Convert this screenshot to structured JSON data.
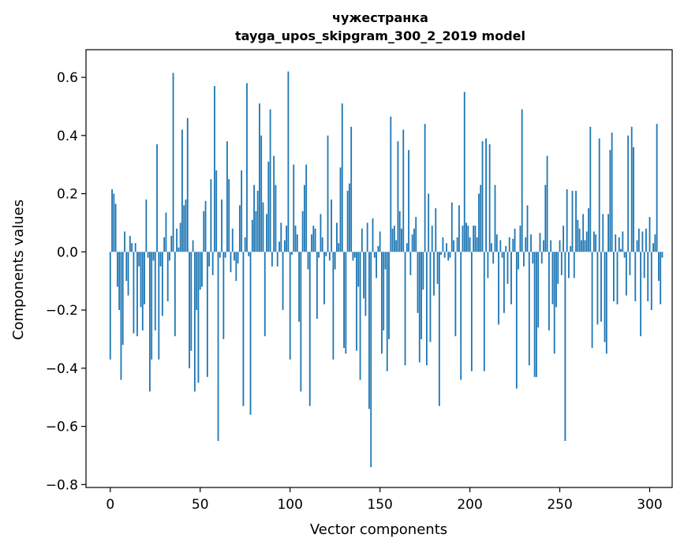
{
  "chart_data": {
    "type": "bar",
    "title": "чужестранка",
    "subtitle": "tayga_upos_skipgram_300_2_2019 model",
    "xlabel": "Vector components",
    "ylabel": "Components values",
    "xlim": [
      -13.5,
      312.5
    ],
    "ylim": [
      -0.81,
      0.695
    ],
    "xticks": [
      0,
      50,
      100,
      150,
      200,
      250,
      300
    ],
    "yticks": [
      -0.8,
      -0.6,
      -0.4,
      -0.2,
      0.0,
      0.2,
      0.4,
      0.6
    ],
    "ytick_labels": [
      "−0.8",
      "−0.6",
      "−0.4",
      "−0.2",
      "0.0",
      "0.2",
      "0.4",
      "0.6"
    ],
    "bar_color": "#1f77b4",
    "values": [
      -0.37,
      0.215,
      0.2,
      0.165,
      -0.12,
      -0.2,
      -0.44,
      -0.32,
      0.07,
      -0.1,
      -0.15,
      0.055,
      0.03,
      -0.28,
      0.03,
      -0.29,
      -0.05,
      -0.19,
      -0.27,
      -0.18,
      0.18,
      -0.02,
      -0.48,
      -0.37,
      -0.03,
      -0.27,
      0.37,
      -0.37,
      -0.05,
      -0.22,
      0.05,
      0.135,
      -0.17,
      -0.03,
      0.055,
      0.615,
      -0.29,
      0.08,
      0.015,
      0.1,
      0.42,
      0.16,
      0.18,
      0.46,
      -0.4,
      -0.34,
      0.04,
      -0.48,
      -0.2,
      -0.45,
      -0.13,
      -0.12,
      0.14,
      0.175,
      -0.43,
      -0.05,
      0.25,
      -0.08,
      0.57,
      0.28,
      -0.65,
      -0.02,
      0.18,
      -0.3,
      -0.02,
      0.38,
      0.25,
      -0.07,
      0.08,
      -0.03,
      -0.1,
      -0.04,
      0.16,
      0.28,
      -0.53,
      0.05,
      0.58,
      -0.015,
      -0.56,
      0.11,
      0.23,
      0.14,
      0.21,
      0.51,
      0.4,
      0.17,
      -0.29,
      0.13,
      0.31,
      0.49,
      -0.05,
      0.33,
      0.23,
      -0.05,
      0.035,
      0.1,
      -0.2,
      0.04,
      0.09,
      0.62,
      -0.37,
      -0.01,
      0.3,
      0.09,
      0.06,
      -0.24,
      -0.48,
      0.14,
      0.23,
      0.3,
      -0.06,
      -0.53,
      0.06,
      0.09,
      0.08,
      -0.23,
      -0.02,
      0.13,
      0.05,
      -0.18,
      -0.015,
      0.4,
      -0.03,
      0.18,
      -0.37,
      -0.06,
      0.1,
      0.03,
      0.29,
      0.51,
      -0.33,
      -0.35,
      0.21,
      0.235,
      0.43,
      -0.03,
      -0.02,
      -0.34,
      -0.12,
      -0.44,
      0.08,
      -0.16,
      -0.22,
      0.1,
      -0.54,
      -0.74,
      0.115,
      -0.02,
      -0.09,
      0.02,
      0.07,
      -0.35,
      -0.27,
      -0.06,
      -0.41,
      -0.3,
      0.465,
      0.08,
      0.09,
      0.04,
      0.38,
      0.14,
      0.08,
      0.42,
      -0.39,
      0.03,
      0.35,
      -0.08,
      0.06,
      0.08,
      0.12,
      -0.21,
      -0.38,
      -0.3,
      -0.13,
      0.44,
      -0.39,
      0.2,
      -0.31,
      0.09,
      -0.15,
      0.15,
      -0.11,
      -0.53,
      -0.01,
      0.05,
      -0.02,
      0.03,
      -0.03,
      -0.02,
      0.17,
      0.04,
      -0.29,
      0.05,
      0.16,
      -0.44,
      0.09,
      0.55,
      0.1,
      0.09,
      0.05,
      -0.41,
      0.09,
      0.09,
      0.05,
      0.2,
      0.23,
      0.38,
      -0.41,
      0.39,
      -0.09,
      0.37,
      0.03,
      -0.04,
      0.23,
      0.06,
      -0.25,
      0.04,
      -0.02,
      -0.21,
      0.02,
      -0.11,
      0.05,
      -0.18,
      0.045,
      0.08,
      -0.47,
      -0.06,
      0.09,
      0.49,
      -0.05,
      0.05,
      0.16,
      -0.39,
      0.06,
      -0.04,
      -0.43,
      -0.43,
      -0.26,
      0.065,
      -0.04,
      0.04,
      0.23,
      0.33,
      -0.27,
      0.04,
      -0.18,
      -0.35,
      -0.19,
      -0.11,
      0.04,
      -0.08,
      0.09,
      -0.65,
      0.215,
      -0.09,
      0.02,
      0.21,
      -0.09,
      0.21,
      0.11,
      0.08,
      0.04,
      0.13,
      0.04,
      0.07,
      0.15,
      0.43,
      -0.33,
      0.07,
      0.06,
      -0.25,
      0.39,
      -0.24,
      0.13,
      -0.31,
      -0.35,
      0.13,
      0.35,
      0.41,
      -0.17,
      0.06,
      -0.18,
      0.05,
      0.01,
      0.07,
      -0.02,
      -0.15,
      0.4,
      -0.08,
      0.43,
      0.36,
      -0.17,
      0.04,
      0.08,
      -0.29,
      0.07,
      -0.09,
      0.08,
      -0.17,
      0.12,
      -0.2,
      0.03,
      0.06,
      0.44,
      -0.1,
      -0.18,
      -0.02
    ]
  }
}
